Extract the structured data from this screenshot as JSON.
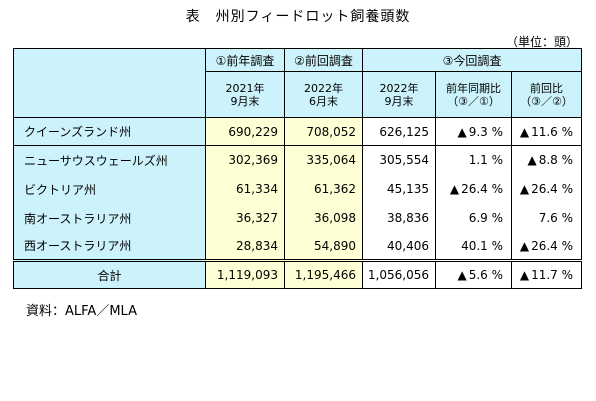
{
  "title": "表　州別フィードロット飼養頭数",
  "unit": "（単位：頭）",
  "source": "資料：ALFA／MLA",
  "headers": {
    "prev_survey": "①前年調査",
    "prev_survey_period_1": "2021年",
    "prev_survey_period_2": "9月末",
    "last_survey": "②前回調査",
    "last_survey_period_1": "2022年",
    "last_survey_period_2": "6月末",
    "current_survey": "③今回調査",
    "current_period_1": "2022年",
    "current_period_2": "9月末",
    "yoy_1": "前年同期比",
    "yoy_2": "（③／①）",
    "prev_ratio_1": "前回比",
    "prev_ratio_2": "（③／②）"
  },
  "rows": [
    {
      "state": "クイーンズランド州",
      "prev": "690,229",
      "last": "708,052",
      "current": "626,125",
      "yoy_mark": "▲",
      "yoy": "9.3 %",
      "pr_mark": "▲",
      "pr": "11.6 %"
    },
    {
      "state": "ニューサウスウェールズ州",
      "prev": "302,369",
      "last": "335,064",
      "current": "305,554",
      "yoy_mark": "",
      "yoy": "1.1 %",
      "pr_mark": "▲",
      "pr": "8.8 %"
    },
    {
      "state": "ビクトリア州",
      "prev": "61,334",
      "last": "61,362",
      "current": "45,135",
      "yoy_mark": "▲",
      "yoy": "26.4 %",
      "pr_mark": "▲",
      "pr": "26.4 %"
    },
    {
      "state": "南オーストラリア州",
      "prev": "36,327",
      "last": "36,098",
      "current": "38,836",
      "yoy_mark": "",
      "yoy": "6.9 %",
      "pr_mark": "",
      "pr": "7.6 %"
    },
    {
      "state": "西オーストラリア州",
      "prev": "28,834",
      "last": "54,890",
      "current": "40,406",
      "yoy_mark": "",
      "yoy": "40.1 %",
      "pr_mark": "▲",
      "pr": "26.4 %"
    }
  ],
  "total": {
    "label": "合計",
    "prev": "1,119,093",
    "last": "1,195,466",
    "current": "1,056,056",
    "yoy_mark": "▲",
    "yoy": "5.6 %",
    "pr_mark": "▲",
    "pr": "11.7 %"
  }
}
